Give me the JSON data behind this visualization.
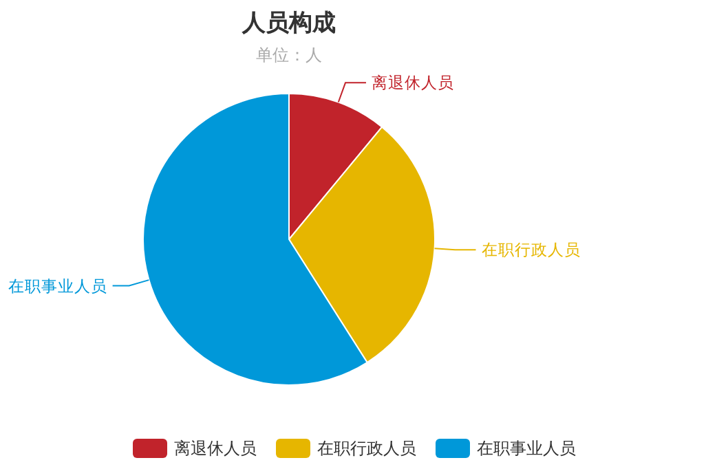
{
  "chart_data": {
    "type": "pie",
    "title": "人员构成",
    "subtitle": "单位：人",
    "categories": [
      "离退休人员",
      "在职行政人员",
      "在职事业人员"
    ],
    "values": [
      11,
      30,
      59
    ],
    "colors": [
      "#c1232b",
      "#e6b600",
      "#0098d9"
    ],
    "legend": "bottom"
  }
}
